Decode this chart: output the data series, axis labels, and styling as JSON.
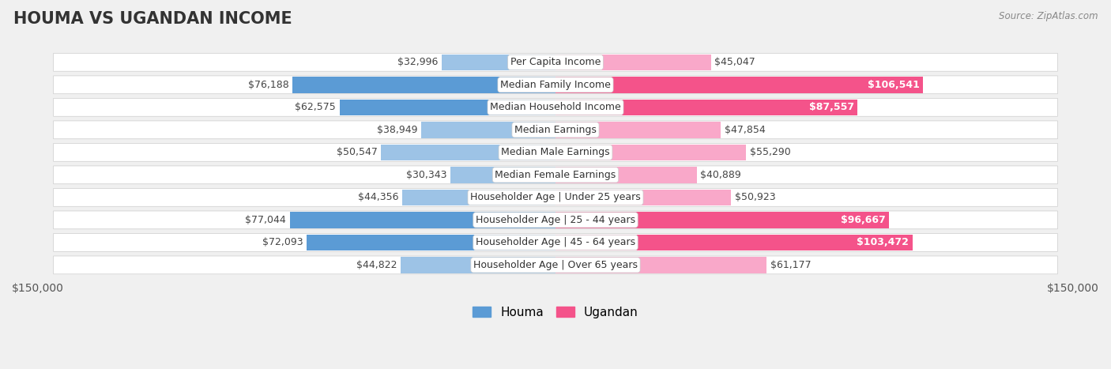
{
  "title": "HOUMA VS UGANDAN INCOME",
  "source": "Source: ZipAtlas.com",
  "categories": [
    "Per Capita Income",
    "Median Family Income",
    "Median Household Income",
    "Median Earnings",
    "Median Male Earnings",
    "Median Female Earnings",
    "Householder Age | Under 25 years",
    "Householder Age | 25 - 44 years",
    "Householder Age | 45 - 64 years",
    "Householder Age | Over 65 years"
  ],
  "houma_values": [
    32996,
    76188,
    62575,
    38949,
    50547,
    30343,
    44356,
    77044,
    72093,
    44822
  ],
  "ugandan_values": [
    45047,
    106541,
    87557,
    47854,
    55290,
    40889,
    50923,
    96667,
    103472,
    61177
  ],
  "houma_labels": [
    "$32,996",
    "$76,188",
    "$62,575",
    "$38,949",
    "$50,547",
    "$30,343",
    "$44,356",
    "$77,044",
    "$72,093",
    "$44,822"
  ],
  "ugandan_labels": [
    "$45,047",
    "$106,541",
    "$87,557",
    "$47,854",
    "$55,290",
    "$40,889",
    "$50,923",
    "$96,667",
    "$103,472",
    "$61,177"
  ],
  "houma_strong_threshold": 60000,
  "ugandan_strong_threshold": 85000,
  "max_value": 150000,
  "houma_color_strong": "#5B9BD5",
  "houma_color_light": "#9DC3E6",
  "ugandan_color_strong": "#F4538A",
  "ugandan_color_light": "#F9A8C9",
  "bg_color": "#f0f0f0",
  "row_bg": "#ffffff",
  "row_bg_alt": "#f7f7f7",
  "title_fontsize": 15,
  "label_fontsize": 9,
  "value_fontsize": 9,
  "axis_fontsize": 10,
  "legend_fontsize": 11
}
